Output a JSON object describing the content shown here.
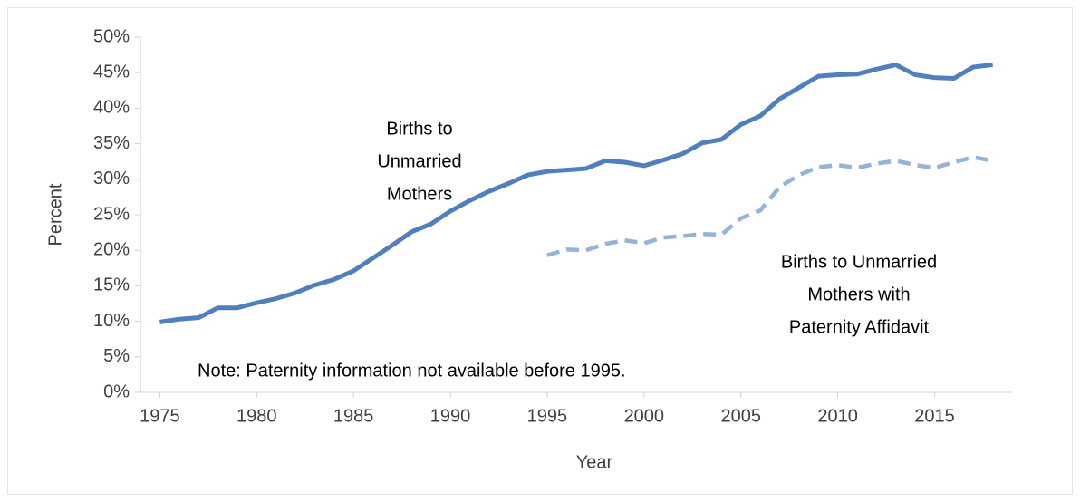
{
  "chart_data": {
    "type": "line",
    "x_label": "Year",
    "y_label": "Percent",
    "x": [
      1975,
      1976,
      1977,
      1978,
      1979,
      1980,
      1981,
      1982,
      1983,
      1984,
      1985,
      1986,
      1987,
      1988,
      1989,
      1990,
      1991,
      1992,
      1993,
      1994,
      1995,
      1996,
      1997,
      1998,
      1999,
      2000,
      2001,
      2002,
      2003,
      2004,
      2005,
      2006,
      2007,
      2008,
      2009,
      2010,
      2011,
      2012,
      2013,
      2014,
      2015,
      2016,
      2017,
      2018
    ],
    "series": [
      {
        "name": "Births to Unmarried Mothers",
        "color": "#4f7fbd",
        "dashed": false,
        "values": [
          9.9,
          10.3,
          10.5,
          11.9,
          11.9,
          12.6,
          13.2,
          14.0,
          15.1,
          15.9,
          17.1,
          18.9,
          20.7,
          22.6,
          23.7,
          25.5,
          27.0,
          28.3,
          29.4,
          30.6,
          31.1,
          31.3,
          31.5,
          32.6,
          32.4,
          31.9,
          32.7,
          33.6,
          35.1,
          35.6,
          37.7,
          38.9,
          41.3,
          42.9,
          44.5,
          44.7,
          44.8,
          45.5,
          46.1,
          44.7,
          44.3,
          44.2,
          45.8,
          46.1
        ]
      },
      {
        "name": "Births to Unmarried Mothers with Paternity Affidavit",
        "color": "#95b3d7",
        "dashed": true,
        "values": [
          null,
          null,
          null,
          null,
          null,
          null,
          null,
          null,
          null,
          null,
          null,
          null,
          null,
          null,
          null,
          null,
          null,
          null,
          null,
          null,
          19.3,
          20.1,
          20.0,
          20.9,
          21.4,
          21.0,
          21.8,
          22.0,
          22.3,
          22.2,
          24.5,
          25.6,
          28.9,
          30.6,
          31.7,
          32.0,
          31.6,
          32.2,
          32.6,
          32.0,
          31.6,
          32.4,
          33.1,
          32.6
        ]
      }
    ],
    "annotations": [
      {
        "lines": [
          "Births to",
          "Unmarried",
          "Mothers"
        ]
      },
      {
        "lines": [
          "Births to Unmarried",
          "Mothers with",
          "Paternity Affidavit"
        ]
      },
      {
        "lines": [
          "Note:  Paternity information not available before 1995."
        ]
      }
    ],
    "xlim": [
      1974,
      2019
    ],
    "xticks": [
      1975,
      1980,
      1985,
      1990,
      1995,
      2000,
      2005,
      2010,
      2015
    ],
    "ylim": [
      0,
      50
    ],
    "yticks": [
      {
        "value": 0,
        "label": "0%"
      },
      {
        "value": 5,
        "label": "5%"
      },
      {
        "value": 10,
        "label": "10%"
      },
      {
        "value": 15,
        "label": "15%"
      },
      {
        "value": 20,
        "label": "20%"
      },
      {
        "value": 25,
        "label": "25%"
      },
      {
        "value": 30,
        "label": "30%"
      },
      {
        "value": 35,
        "label": "35%"
      },
      {
        "value": 40,
        "label": "40%"
      },
      {
        "value": 45,
        "label": "45%"
      },
      {
        "value": 50,
        "label": "50%"
      }
    ],
    "grid": false
  }
}
